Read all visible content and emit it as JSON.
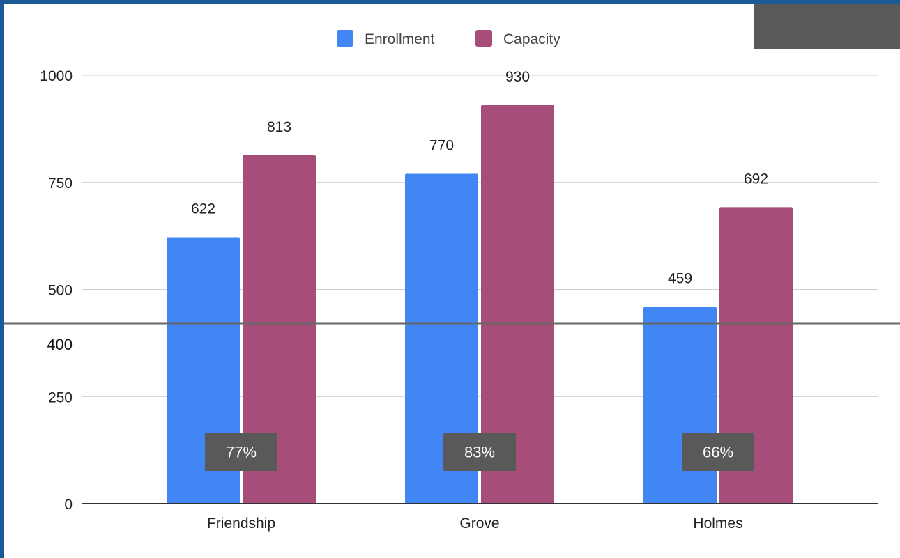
{
  "chart_data": {
    "type": "bar",
    "categories": [
      "Friendship",
      "Grove",
      "Holmes"
    ],
    "series": [
      {
        "name": "Enrollment",
        "values": [
          622,
          770,
          459
        ],
        "color": "#4285f4"
      },
      {
        "name": "Capacity",
        "values": [
          813,
          930,
          692
        ],
        "color": "#a64d79"
      }
    ],
    "ylim": [
      0,
      1000
    ],
    "y_ticks": [
      0,
      250,
      500,
      750,
      1000
    ],
    "grid": true,
    "legend_position": "top",
    "reference_line": {
      "value": 400,
      "label": "400",
      "color": "#666666"
    },
    "ratio_labels": [
      "77%",
      "83%",
      "66%"
    ],
    "ratio_box_color": "#595959"
  }
}
